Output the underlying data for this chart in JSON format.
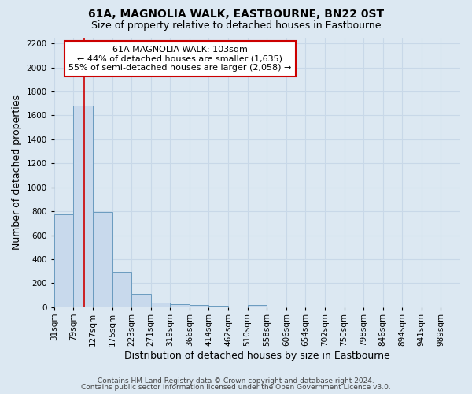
{
  "title": "61A, MAGNOLIA WALK, EASTBOURNE, BN22 0ST",
  "subtitle": "Size of property relative to detached houses in Eastbourne",
  "xlabel": "Distribution of detached houses by size in Eastbourne",
  "ylabel": "Number of detached properties",
  "bin_labels": [
    "31sqm",
    "79sqm",
    "127sqm",
    "175sqm",
    "223sqm",
    "271sqm",
    "319sqm",
    "366sqm",
    "414sqm",
    "462sqm",
    "510sqm",
    "558sqm",
    "606sqm",
    "654sqm",
    "702sqm",
    "750sqm",
    "798sqm",
    "846sqm",
    "894sqm",
    "941sqm",
    "989sqm"
  ],
  "bar_heights": [
    775,
    1680,
    795,
    295,
    110,
    38,
    27,
    20,
    15,
    0,
    20,
    0,
    0,
    0,
    0,
    0,
    0,
    0,
    0,
    0,
    0
  ],
  "bar_color": "#c8d9ec",
  "bar_edge_color": "#6a9bbf",
  "property_label": "61A MAGNOLIA WALK: 103sqm",
  "annotation_line1": "← 44% of detached houses are smaller (1,635)",
  "annotation_line2": "55% of semi-detached houses are larger (2,058) →",
  "annotation_box_color": "#ffffff",
  "annotation_box_edge": "#cc0000",
  "vline_color": "#cc0000",
  "vline_x_bin": 1.54,
  "ylim": [
    0,
    2250
  ],
  "yticks": [
    0,
    200,
    400,
    600,
    800,
    1000,
    1200,
    1400,
    1600,
    1800,
    2000,
    2200
  ],
  "footer1": "Contains HM Land Registry data © Crown copyright and database right 2024.",
  "footer2": "Contains public sector information licensed under the Open Government Licence v3.0.",
  "grid_color": "#c8d8e8",
  "background_color": "#dce8f2",
  "title_fontsize": 10,
  "subtitle_fontsize": 9,
  "xlabel_fontsize": 9,
  "ylabel_fontsize": 9,
  "tick_fontsize": 7.5,
  "footer_fontsize": 6.5,
  "annotation_fontsize": 8
}
